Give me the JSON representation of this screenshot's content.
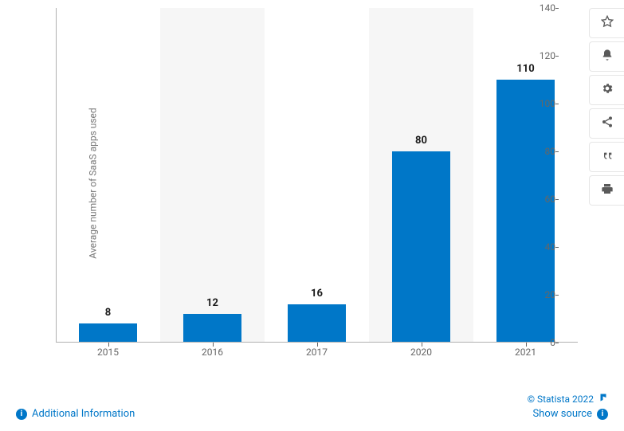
{
  "chart": {
    "type": "bar",
    "ylabel": "Average number of SaaS apps used",
    "ylim": [
      0,
      140
    ],
    "ytick_step": 20,
    "yticks": [
      0,
      20,
      40,
      60,
      80,
      100,
      120,
      140
    ],
    "categories": [
      "2015",
      "2016",
      "2017",
      "2020",
      "2021"
    ],
    "values": [
      8,
      12,
      16,
      80,
      110
    ],
    "bar_color": "#0077c8",
    "alt_band_color": "#f6f6f6",
    "background_color": "#ffffff",
    "axis_color": "#b0b0b0",
    "tick_label_color": "#666666",
    "value_label_color": "#1a1a1a",
    "value_label_fontsize": 13,
    "value_label_fontweight": 700,
    "tick_label_fontsize": 12,
    "ylabel_fontsize": 12,
    "bar_width_ratio": 0.55
  },
  "toolbar": {
    "items": [
      {
        "name": "favorite",
        "icon": "star"
      },
      {
        "name": "notify",
        "icon": "bell"
      },
      {
        "name": "settings",
        "icon": "gear"
      },
      {
        "name": "share",
        "icon": "share"
      },
      {
        "name": "cite",
        "icon": "quote"
      },
      {
        "name": "print",
        "icon": "print"
      }
    ]
  },
  "footer": {
    "additional_info": "Additional Information",
    "copyright": "© Statista 2022",
    "show_source": "Show source"
  }
}
